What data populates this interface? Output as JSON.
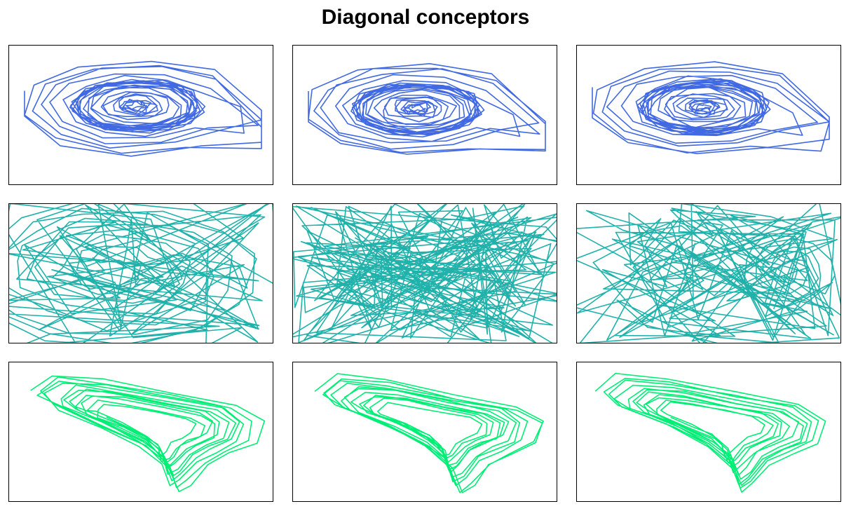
{
  "title": "Diagonal conceptors",
  "chart_data": {
    "type": "line",
    "title": "Diagonal conceptors",
    "grid": false,
    "legend": "none",
    "axes_visible": false,
    "layout_rows": 3,
    "layout_cols": 3,
    "rows": [
      {
        "pattern": "spiral",
        "color": "#4169E1",
        "row": 1
      },
      {
        "pattern": "chaotic",
        "color": "#20B2AA",
        "row": 2
      },
      {
        "pattern": "loop",
        "color": "#00EE76",
        "row": 3
      }
    ],
    "panels": [
      {
        "row": 1,
        "col": 1
      },
      {
        "row": 1,
        "col": 2
      },
      {
        "row": 1,
        "col": 3
      },
      {
        "row": 2,
        "col": 1
      },
      {
        "row": 2,
        "col": 2
      },
      {
        "row": 2,
        "col": 3
      },
      {
        "row": 3,
        "col": 1
      },
      {
        "row": 3,
        "col": 2
      },
      {
        "row": 3,
        "col": 3
      }
    ]
  }
}
